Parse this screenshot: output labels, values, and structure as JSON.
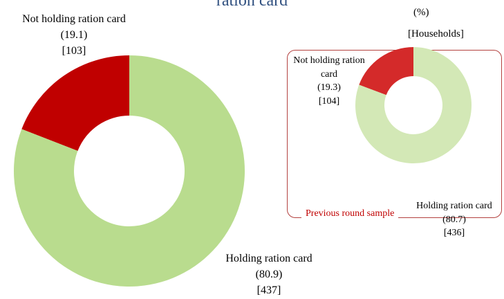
{
  "title": "ration card",
  "unit_label": "(%)",
  "base_label": "[Households]",
  "chart_data": [
    {
      "type": "donut",
      "categories": [
        "Not holding ration card",
        "Holding ration card"
      ],
      "values": [
        19.1,
        80.9
      ],
      "value_labels": [
        "(19.1)",
        "(80.9)"
      ],
      "counts": [
        103,
        437
      ],
      "count_labels": [
        "[103]",
        "[437]"
      ],
      "colors": [
        "#c00000",
        "#b9dc8e"
      ]
    },
    {
      "type": "donut",
      "annotation": "Previous round sample",
      "categories": [
        "Not holding ration card",
        "Holding ration card"
      ],
      "values": [
        19.3,
        80.7
      ],
      "value_labels": [
        "(19.3)",
        "(80.7)"
      ],
      "counts": [
        104,
        436
      ],
      "count_labels": [
        "[104]",
        "[436]"
      ],
      "colors": [
        "#d42a2a",
        "#d3e8b6"
      ]
    }
  ]
}
